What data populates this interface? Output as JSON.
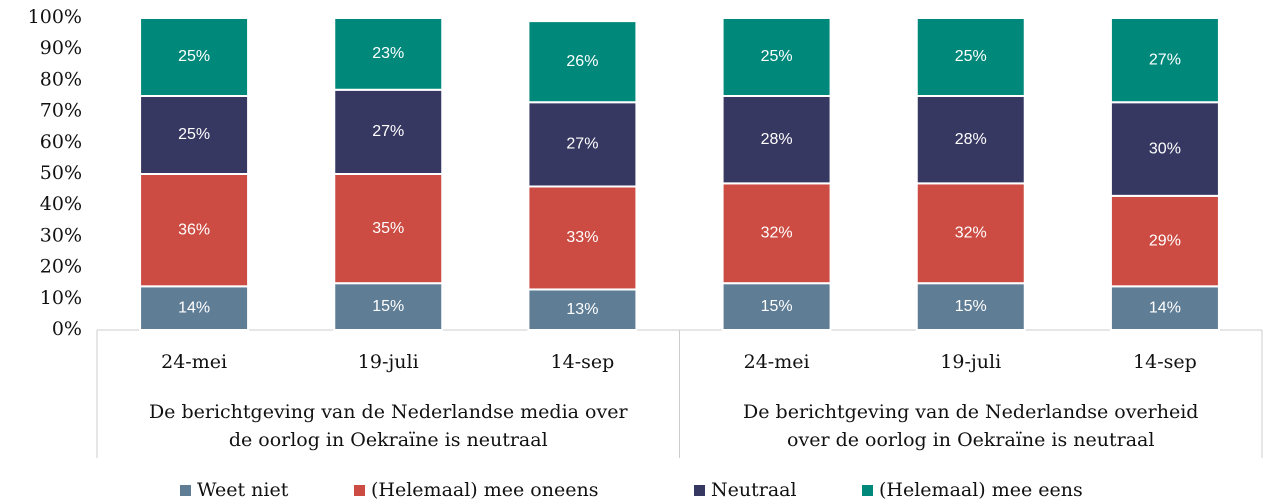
{
  "chart_data": {
    "type": "stacked_bar",
    "groups": [
      {
        "label_lines": [
          "De berichtgeving van de Nederlandse media over",
          "de oorlog in Oekraïne is neutraal"
        ],
        "categories": [
          "24-mei",
          "19-juli",
          "14-sep"
        ]
      },
      {
        "label_lines": [
          "De berichtgeving van de Nederlandse overheid",
          "over de oorlog in Oekraïne is neutraal"
        ],
        "categories": [
          "24-mei",
          "19-juli",
          "14-sep"
        ]
      }
    ],
    "series": [
      {
        "name": "Weet niet",
        "color": "#5f7d95",
        "values": [
          14,
          15,
          13,
          15,
          15,
          14
        ],
        "value_labels": [
          "14%",
          "15%",
          "13%",
          "15%",
          "15%",
          "14%"
        ]
      },
      {
        "name": "(Helemaal) mee oneens",
        "color": "#cc4b42",
        "values": [
          36,
          35,
          33,
          32,
          32,
          29
        ],
        "value_labels": [
          "36%",
          "35%",
          "33%",
          "32%",
          "32%",
          "29%"
        ]
      },
      {
        "name": "Neutraal",
        "color": "#363862",
        "values": [
          25,
          27,
          27,
          28,
          28,
          30
        ],
        "value_labels": [
          "25%",
          "27%",
          "27%",
          "28%",
          "28%",
          "30%"
        ]
      },
      {
        "name": "(Helemaal) mee eens",
        "color": "#00897b",
        "values": [
          25,
          23,
          26,
          25,
          25,
          27
        ],
        "value_labels": [
          "25%",
          "23%",
          "26%",
          "25%",
          "25%",
          "27%"
        ]
      }
    ],
    "ylim": [
      0,
      100
    ],
    "yticks": [
      {
        "value": 0,
        "label": "0%"
      },
      {
        "value": 10,
        "label": "10%"
      },
      {
        "value": 20,
        "label": "20%"
      },
      {
        "value": 30,
        "label": "30%"
      },
      {
        "value": 40,
        "label": "40%"
      },
      {
        "value": 50,
        "label": "50%"
      },
      {
        "value": 60,
        "label": "60%"
      },
      {
        "value": 70,
        "label": "70%"
      },
      {
        "value": 80,
        "label": "80%"
      },
      {
        "value": 90,
        "label": "90%"
      },
      {
        "value": 100,
        "label": "100%"
      }
    ],
    "legend": "bottom"
  }
}
